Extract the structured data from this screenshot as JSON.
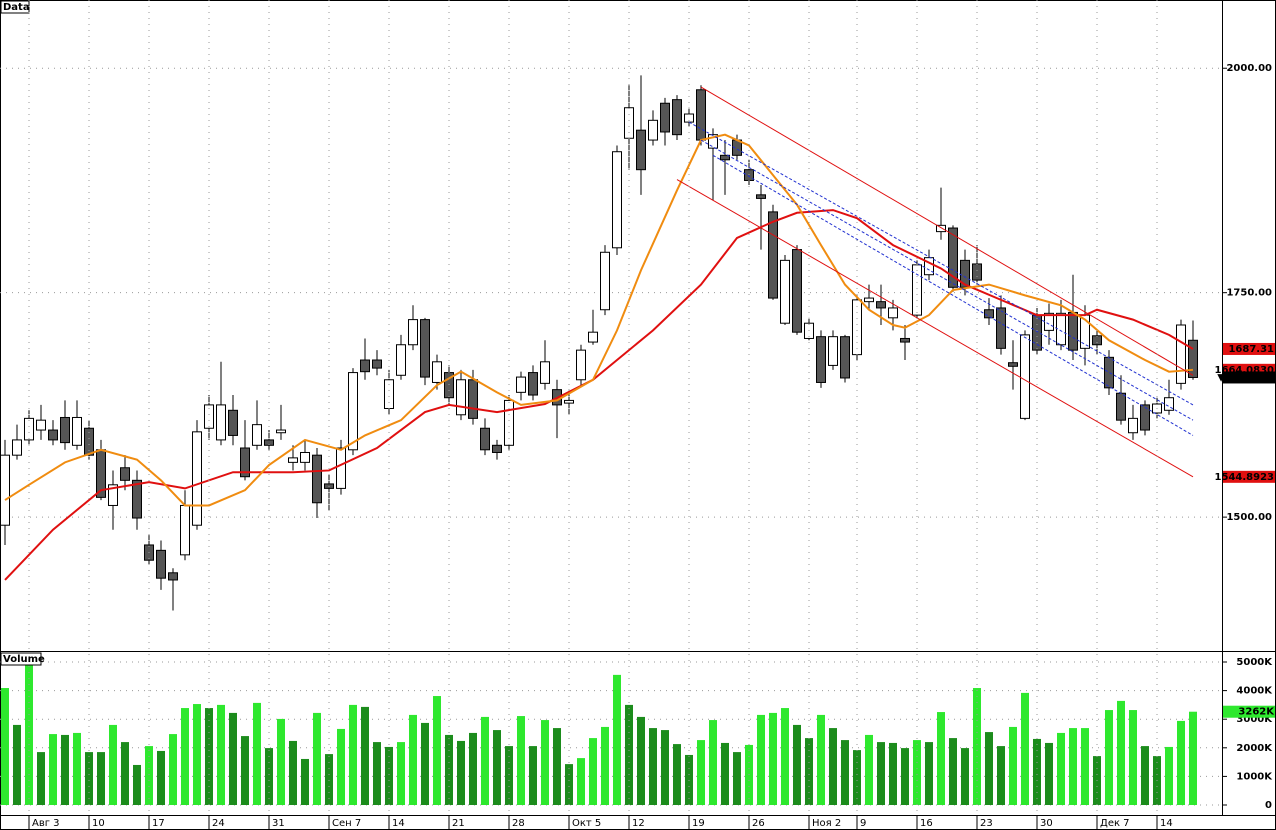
{
  "chart_data": [
    {
      "type": "candlestick",
      "panel_label": "Data",
      "open": [
        1491,
        1569,
        1586,
        1597,
        1597,
        1611,
        1580,
        1599,
        1575,
        1513,
        1555,
        1541,
        1469,
        1463,
        1438,
        1458,
        1491,
        1599,
        1586,
        1619,
        1577,
        1580,
        1586,
        1594,
        1561,
        1561,
        1569,
        1537,
        1532,
        1575,
        1675,
        1675,
        1621,
        1658,
        1692,
        1720,
        1650,
        1661,
        1614,
        1653,
        1599,
        1580,
        1580,
        1639,
        1661,
        1649,
        1642,
        1627,
        1653,
        1695,
        1731,
        1800,
        1922,
        1931,
        1920,
        1961,
        1965,
        1940,
        1976,
        1911,
        1903,
        1920,
        1887,
        1859,
        1840,
        1716,
        1798,
        1699,
        1701,
        1669,
        1701,
        1681,
        1740,
        1740,
        1722,
        1699,
        1725,
        1770,
        1818,
        1822,
        1786,
        1782,
        1731,
        1733,
        1672,
        1610,
        1725,
        1708,
        1692,
        1728,
        1688,
        1702,
        1678,
        1638,
        1594,
        1625,
        1616,
        1619,
        1649,
        1697
      ],
      "high": [
        1586,
        1603,
        1619,
        1625,
        1608,
        1630,
        1630,
        1608,
        1586,
        1552,
        1569,
        1552,
        1480,
        1474,
        1443,
        1530,
        1608,
        1636,
        1673,
        1636,
        1608,
        1630,
        1597,
        1625,
        1580,
        1586,
        1577,
        1547,
        1586,
        1666,
        1699,
        1686,
        1664,
        1703,
        1736,
        1722,
        1681,
        1669,
        1664,
        1664,
        1610,
        1586,
        1636,
        1662,
        1669,
        1697,
        1653,
        1642,
        1692,
        1731,
        1803,
        1914,
        1981,
        1992,
        1953,
        1967,
        1970,
        1956,
        1981,
        1933,
        1920,
        1926,
        1898,
        1870,
        1848,
        1792,
        1803,
        1722,
        1708,
        1708,
        1703,
        1747,
        1759,
        1759,
        1742,
        1714,
        1786,
        1798,
        1867,
        1825,
        1798,
        1803,
        1744,
        1747,
        1697,
        1708,
        1733,
        1738,
        1742,
        1770,
        1736,
        1708,
        1686,
        1658,
        1625,
        1630,
        1633,
        1653,
        1720,
        1719
      ],
      "low": [
        1469,
        1564,
        1580,
        1586,
        1580,
        1575,
        1575,
        1564,
        1519,
        1486,
        1530,
        1486,
        1447,
        1419,
        1396,
        1452,
        1486,
        1586,
        1580,
        1580,
        1541,
        1575,
        1575,
        1586,
        1552,
        1552,
        1499,
        1508,
        1525,
        1569,
        1653,
        1658,
        1614,
        1653,
        1686,
        1647,
        1642,
        1625,
        1608,
        1603,
        1569,
        1564,
        1575,
        1630,
        1630,
        1642,
        1588,
        1614,
        1647,
        1692,
        1725,
        1792,
        1887,
        1859,
        1914,
        1914,
        1920,
        1935,
        1914,
        1853,
        1859,
        1898,
        1870,
        1798,
        1742,
        1714,
        1703,
        1697,
        1644,
        1664,
        1650,
        1675,
        1731,
        1714,
        1708,
        1675,
        1722,
        1764,
        1809,
        1751,
        1747,
        1759,
        1714,
        1681,
        1642,
        1608,
        1681,
        1692,
        1686,
        1675,
        1669,
        1681,
        1636,
        1603,
        1586,
        1591,
        1610,
        1614,
        1642,
        1653
      ],
      "close": [
        1569,
        1586,
        1610,
        1608,
        1586,
        1583,
        1611,
        1569,
        1522,
        1536,
        1541,
        1499,
        1452,
        1432,
        1430,
        1513,
        1595,
        1625,
        1625,
        1591,
        1545,
        1603,
        1580,
        1597,
        1566,
        1572,
        1516,
        1532,
        1577,
        1661,
        1662,
        1666,
        1653,
        1692,
        1720,
        1656,
        1673,
        1633,
        1653,
        1610,
        1575,
        1572,
        1630,
        1656,
        1636,
        1673,
        1625,
        1630,
        1686,
        1706,
        1795,
        1907,
        1956,
        1887,
        1942,
        1929,
        1926,
        1949,
        1920,
        1926,
        1898,
        1903,
        1875,
        1855,
        1744,
        1786,
        1706,
        1716,
        1650,
        1701,
        1655,
        1742,
        1744,
        1733,
        1733,
        1695,
        1781,
        1789,
        1825,
        1756,
        1756,
        1764,
        1722,
        1688,
        1668,
        1703,
        1686,
        1727,
        1727,
        1686,
        1725,
        1692,
        1644,
        1608,
        1610,
        1597,
        1626,
        1633,
        1714,
        1655.56
      ],
      "up_color": "#ffffff",
      "down_color": "#555555",
      "ylim": [
        1352,
        2076
      ],
      "yticks": [
        {
          "value": 1500,
          "label": "1500.00"
        },
        {
          "value": 1750,
          "label": "1750.00"
        },
        {
          "value": 2000,
          "label": "2000.00"
        }
      ],
      "grid": true,
      "lines": [
        {
          "color": "#e01010",
          "style": "solid",
          "x": [
            0,
            4,
            8,
            12,
            15,
            19,
            24,
            27,
            31,
            35,
            37,
            41,
            45,
            49,
            54,
            58,
            61,
            64,
            66,
            69,
            71,
            74,
            78,
            80,
            83,
            86,
            90,
            91,
            94,
            97,
            99
          ],
          "values": [
            1430,
            1486,
            1530,
            1539,
            1532,
            1550,
            1550,
            1552,
            1577,
            1617,
            1625,
            1617,
            1626,
            1653,
            1708,
            1759,
            1811,
            1829,
            1839,
            1842,
            1833,
            1803,
            1777,
            1759,
            1742,
            1725,
            1725,
            1731,
            1720,
            1703,
            1687.31
          ]
        },
        {
          "color": "#f08c10",
          "style": "solid",
          "x": [
            0,
            2,
            5,
            8,
            11,
            13,
            15,
            17,
            20,
            22,
            25,
            28,
            30,
            33,
            36,
            38,
            41,
            43,
            46,
            49,
            51,
            53,
            56,
            58,
            60,
            62,
            64,
            66,
            68,
            70,
            72,
            74,
            75,
            77,
            79,
            82,
            85,
            88,
            90,
            92,
            95,
            97,
            99
          ],
          "values": [
            1519,
            1536,
            1561,
            1575,
            1564,
            1541,
            1513,
            1513,
            1530,
            1558,
            1586,
            1575,
            1591,
            1608,
            1647,
            1662,
            1639,
            1625,
            1630,
            1653,
            1708,
            1775,
            1864,
            1920,
            1926,
            1914,
            1881,
            1848,
            1803,
            1759,
            1731,
            1714,
            1711,
            1725,
            1753,
            1759,
            1747,
            1736,
            1720,
            1697,
            1675,
            1662,
            1664.083
          ]
        },
        {
          "color": "#e01010",
          "style": "thin",
          "x": [
            58,
            99
          ],
          "values": [
            1979,
            1658
          ]
        },
        {
          "color": "#e01010",
          "style": "thin",
          "x": [
            56,
            99
          ],
          "values": [
            1876,
            1544.8923
          ]
        },
        {
          "color": "#2030d0",
          "style": "dashed",
          "x": [
            57,
            99
          ],
          "values": [
            1940,
            1625
          ]
        },
        {
          "color": "#2030d0",
          "style": "dashed",
          "x": [
            58,
            99
          ],
          "values": [
            1920,
            1608
          ]
        },
        {
          "color": "#2030d0",
          "style": "dashed",
          "x": [
            59,
            99
          ],
          "values": [
            1903,
            1591
          ]
        }
      ],
      "price_labels": [
        {
          "value": 1687.31,
          "label": "1687.31",
          "color": "#e01010"
        },
        {
          "value": 1664.083,
          "label": "1664.0830",
          "color": "#e01010"
        },
        {
          "value": 1655.56,
          "label": "▼ 1655.56",
          "color": "#000000"
        },
        {
          "value": 1544.8923,
          "label": "1544.8923",
          "color": "#e01010"
        }
      ]
    },
    {
      "type": "bar",
      "panel_label": "Volume",
      "categories": [
        null,
        null,
        "Авг 3",
        null,
        null,
        null,
        null,
        "10",
        null,
        null,
        null,
        null,
        "17",
        null,
        null,
        null,
        null,
        "24",
        null,
        null,
        null,
        null,
        "31",
        null,
        null,
        null,
        null,
        "Сен 7",
        null,
        null,
        null,
        null,
        "14",
        null,
        null,
        null,
        null,
        "21",
        null,
        null,
        null,
        null,
        "28",
        null,
        null,
        null,
        null,
        "Окт 5",
        null,
        null,
        null,
        null,
        "12",
        null,
        null,
        null,
        null,
        "19",
        null,
        null,
        null,
        null,
        "26",
        null,
        null,
        null,
        null,
        "Ноя 2",
        null,
        null,
        null,
        "9",
        null,
        null,
        null,
        null,
        "16",
        null,
        null,
        null,
        null,
        "23",
        null,
        null,
        null,
        null,
        "30",
        null,
        null,
        null,
        null,
        "Дек 7",
        null,
        null,
        null,
        null,
        "14",
        null,
        null,
        null
      ],
      "values": [
        4090,
        2800,
        4900,
        1850,
        2480,
        2450,
        2520,
        1850,
        1850,
        2800,
        2200,
        1400,
        2060,
        1890,
        2480,
        3390,
        3530,
        3390,
        3500,
        3220,
        2410,
        3570,
        1990,
        3010,
        2240,
        1610,
        3220,
        1780,
        2660,
        3500,
        3430,
        2200,
        2030,
        2200,
        3150,
        2870,
        3810,
        2450,
        2240,
        2520,
        3080,
        2620,
        2060,
        3110,
        2060,
        2970,
        2690,
        1430,
        1640,
        2340,
        2730,
        4550,
        3500,
        3080,
        2690,
        2620,
        2130,
        1750,
        2270,
        2970,
        2170,
        1850,
        2100,
        3150,
        3220,
        3390,
        2800,
        2340,
        3150,
        2690,
        2270,
        1920,
        2450,
        2200,
        2170,
        1990,
        2270,
        2200,
        3250,
        2340,
        1990,
        4090,
        2550,
        2060,
        2730,
        3920,
        2310,
        2170,
        2520,
        2690,
        2690,
        1710,
        3320,
        3640,
        3320,
        2060,
        1710,
        2030,
        2940,
        3262
      ],
      "colors": [
        "#2ee82e",
        "#1c8c1c",
        "#2ee82e",
        "#1c8c1c",
        "#2ee82e",
        "#1c8c1c",
        "#2ee82e",
        "#1c8c1c",
        "#1c8c1c",
        "#2ee82e",
        "#1c8c1c",
        "#1c8c1c",
        "#2ee82e",
        "#1c8c1c",
        "#2ee82e",
        "#2ee82e",
        "#2ee82e",
        "#1c8c1c",
        "#2ee82e",
        "#1c8c1c",
        "#1c8c1c",
        "#2ee82e",
        "#1c8c1c",
        "#2ee82e",
        "#1c8c1c",
        "#1c8c1c",
        "#2ee82e",
        "#1c8c1c",
        "#2ee82e",
        "#2ee82e",
        "#1c8c1c",
        "#1c8c1c",
        "#1c8c1c",
        "#2ee82e",
        "#2ee82e",
        "#1c8c1c",
        "#2ee82e",
        "#1c8c1c",
        "#1c8c1c",
        "#1c8c1c",
        "#2ee82e",
        "#1c8c1c",
        "#1c8c1c",
        "#2ee82e",
        "#1c8c1c",
        "#2ee82e",
        "#1c8c1c",
        "#1c8c1c",
        "#2ee82e",
        "#2ee82e",
        "#2ee82e",
        "#2ee82e",
        "#1c8c1c",
        "#1c8c1c",
        "#1c8c1c",
        "#1c8c1c",
        "#1c8c1c",
        "#1c8c1c",
        "#2ee82e",
        "#2ee82e",
        "#1c8c1c",
        "#1c8c1c",
        "#2ee82e",
        "#2ee82e",
        "#2ee82e",
        "#2ee82e",
        "#1c8c1c",
        "#1c8c1c",
        "#2ee82e",
        "#1c8c1c",
        "#1c8c1c",
        "#1c8c1c",
        "#2ee82e",
        "#1c8c1c",
        "#1c8c1c",
        "#1c8c1c",
        "#2ee82e",
        "#1c8c1c",
        "#2ee82e",
        "#1c8c1c",
        "#1c8c1c",
        "#2ee82e",
        "#1c8c1c",
        "#1c8c1c",
        "#2ee82e",
        "#2ee82e",
        "#1c8c1c",
        "#1c8c1c",
        "#2ee82e",
        "#2ee82e",
        "#2ee82e",
        "#1c8c1c",
        "#2ee82e",
        "#2ee82e",
        "#2ee82e",
        "#1c8c1c",
        "#1c8c1c",
        "#2ee82e",
        "#2ee82e",
        "#2ee82e"
      ],
      "ylim": [
        0,
        5245
      ],
      "yticks": [
        0,
        {
          "value": 1000,
          "label": "1000K"
        },
        {
          "value": 2000,
          "label": "2000K"
        },
        {
          "value": 3000,
          "label": "3000K"
        },
        {
          "value": 4000,
          "label": "4000K"
        },
        {
          "value": 5000,
          "label": "5000K"
        }
      ],
      "grid": true,
      "value_label": {
        "value": 3262,
        "label": "3262K",
        "color": "#2ee82e"
      }
    }
  ]
}
